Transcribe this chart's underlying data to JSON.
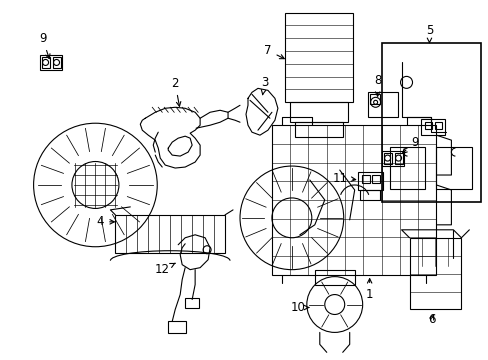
{
  "background_color": "#ffffff",
  "line_color": "#000000",
  "text_color": "#000000",
  "label_fontsize": 8.5,
  "fig_width": 4.89,
  "fig_height": 3.6,
  "dpi": 100
}
